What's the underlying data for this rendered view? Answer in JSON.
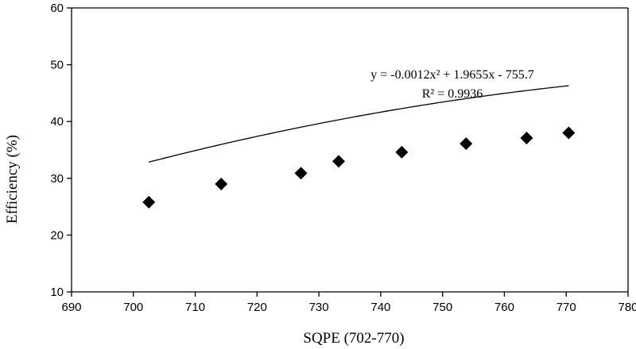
{
  "chart_data": {
    "type": "scatter",
    "title": "",
    "xlabel": "SQPE (702-770)",
    "ylabel": "Efficiency  (%)",
    "xlim": [
      690,
      780
    ],
    "ylim": [
      10,
      60
    ],
    "xticks": [
      690,
      700,
      710,
      720,
      730,
      740,
      750,
      760,
      770,
      780
    ],
    "yticks": [
      10,
      20,
      30,
      40,
      50,
      60
    ],
    "grid": false,
    "legend": "none",
    "marker": "diamond",
    "colors": {
      "marker": "#000000",
      "line": "#000000",
      "axis": "#000000"
    },
    "series": [
      {
        "x": [
          702.5,
          714.2,
          727.1,
          733.2,
          743.4,
          753.8,
          763.6,
          770.4
        ],
        "y": [
          25.8,
          29.0,
          30.9,
          33.0,
          34.6,
          36.1,
          37.1,
          38.0
        ]
      }
    ],
    "trendline": {
      "type": "polynomial",
      "coefficients": [
        -0.0012,
        1.9655,
        -755.7
      ],
      "x_range": [
        702.5,
        770.4
      ],
      "equation_text": "y = -0.0012x² + 1.9655x - 755.7",
      "r2_text": "R² = 0.9936"
    }
  }
}
